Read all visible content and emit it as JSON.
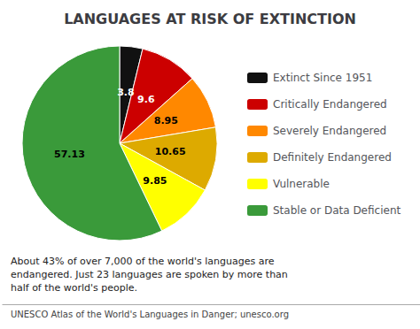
{
  "chart_data": {
    "type": "pie",
    "title": "LANGUAGES AT RISK OF EXTINCTION",
    "categories": [
      "Extinct Since 1951",
      "Critically Endangered",
      "Severely Endangered",
      "Definitely Endangered",
      "Vulnerable",
      "Stable or Data Deficient"
    ],
    "values": [
      3.8,
      9.6,
      8.95,
      10.65,
      9.85,
      57.13
    ],
    "colors": [
      "#111111",
      "#cc0000",
      "#ff8800",
      "#ddaa00",
      "#ffff00",
      "#3a9a3a"
    ],
    "data_labels": true,
    "legend": "right",
    "annotations": [
      "About 43% of over 7,000 of the world's languages are\nendangered. Just 23 languages are spoken by more than\nhalf of the world's people.",
      "UNESCO Atlas of the World's Languages in Danger; unesco.org"
    ]
  }
}
